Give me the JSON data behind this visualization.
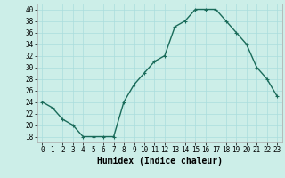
{
  "x": [
    0,
    1,
    2,
    3,
    4,
    5,
    6,
    7,
    8,
    9,
    10,
    11,
    12,
    13,
    14,
    15,
    16,
    17,
    18,
    19,
    20,
    21,
    22,
    23
  ],
  "y": [
    24,
    23,
    21,
    20,
    18,
    18,
    18,
    18,
    24,
    27,
    29,
    31,
    32,
    37,
    38,
    40,
    40,
    40,
    38,
    36,
    34,
    30,
    28,
    25
  ],
  "line_color": "#1a6b5a",
  "marker": "+",
  "bg_color": "#cceee8",
  "grid_color": "#aadddd",
  "xlabel": "Humidex (Indice chaleur)",
  "ylim": [
    17,
    41
  ],
  "yticks": [
    18,
    20,
    22,
    24,
    26,
    28,
    30,
    32,
    34,
    36,
    38,
    40
  ],
  "xticks": [
    0,
    1,
    2,
    3,
    4,
    5,
    6,
    7,
    8,
    9,
    10,
    11,
    12,
    13,
    14,
    15,
    16,
    17,
    18,
    19,
    20,
    21,
    22,
    23
  ],
  "xlabel_fontsize": 7,
  "tick_fontsize": 5.5,
  "line_width": 1.0,
  "marker_size": 3.5,
  "xlim": [
    -0.5,
    23.5
  ]
}
